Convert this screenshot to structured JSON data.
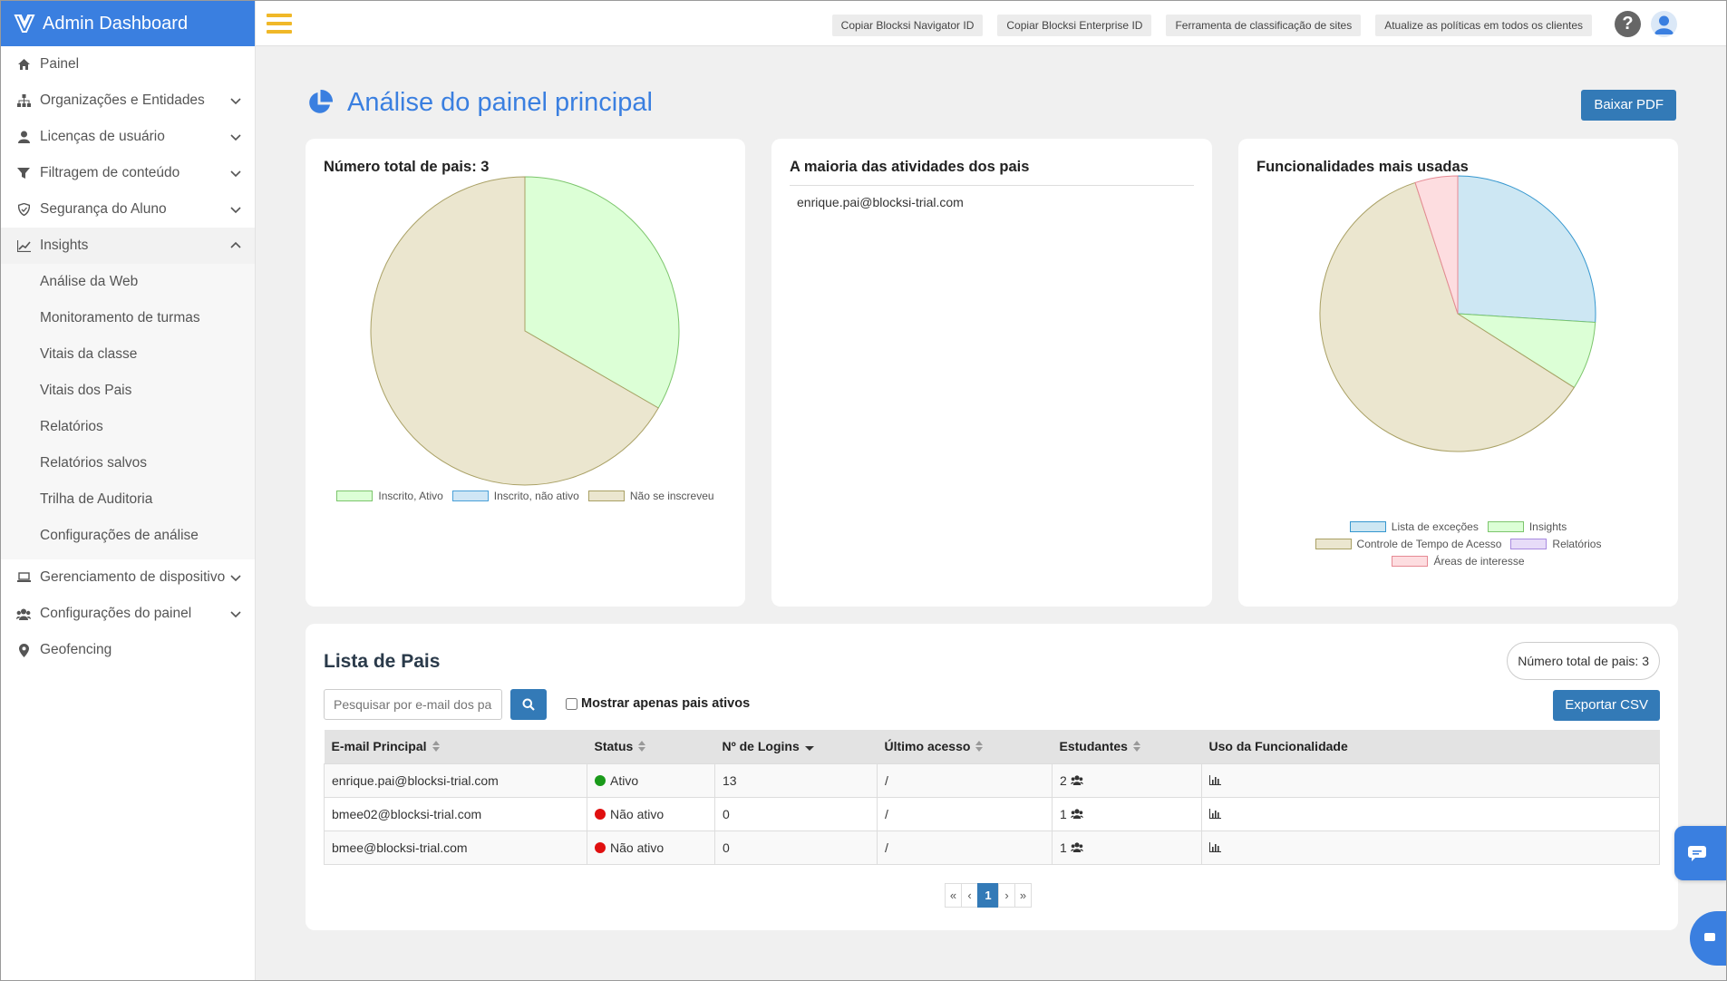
{
  "app": {
    "title": "Admin Dashboard"
  },
  "sidebar": {
    "items": [
      {
        "label": "Painel",
        "icon": "home-icon"
      },
      {
        "label": "Organizações e Entidades",
        "icon": "sitemap-icon",
        "expandable": true
      },
      {
        "label": "Licenças de usuário",
        "icon": "user-icon",
        "expandable": true
      },
      {
        "label": "Filtragem de conteúdo",
        "icon": "filter-icon",
        "expandable": true
      },
      {
        "label": "Segurança do Aluno",
        "icon": "shield-icon",
        "expandable": true
      },
      {
        "label": "Insights",
        "icon": "chart-icon",
        "expandable": true,
        "open": true
      },
      {
        "label": "Gerenciamento de dispositivo",
        "icon": "laptop-icon",
        "expandable": true
      },
      {
        "label": "Configurações do painel",
        "icon": "users-icon",
        "expandable": true
      },
      {
        "label": "Geofencing",
        "icon": "map-marker-icon"
      }
    ],
    "insights_sub": [
      "Análise da Web",
      "Monitoramento de turmas",
      "Vitais da classe",
      "Vitais dos Pais",
      "Relatórios",
      "Relatórios salvos",
      "Trilha de Auditoria",
      "Configurações de análise"
    ]
  },
  "topbar": {
    "buttons": [
      "Copiar Blocksi Navigator ID",
      "Copiar Blocksi Enterprise ID",
      "Ferramenta de classificação de sites",
      "Atualize as políticas em todos os clientes"
    ],
    "help": "?"
  },
  "page": {
    "title": "Análise do painel principal",
    "pdf_button": "Baixar PDF"
  },
  "cards": {
    "parents": {
      "title": "Número total de pais: 3"
    },
    "activities": {
      "title": "A maioria das atividades dos pais",
      "items": [
        "enrique.pai@blocksi-trial.com"
      ]
    },
    "features": {
      "title": "Funcionalidades mais usadas"
    }
  },
  "chart_data": [
    {
      "type": "pie",
      "title": "Número total de pais: 3",
      "categories": [
        "Inscrito, Ativo",
        "Inscrito, não ativo",
        "Não se inscreveu"
      ],
      "values": [
        1,
        0,
        2
      ],
      "colors": [
        {
          "fill": "#dcffd6",
          "stroke": "#7cc56c"
        },
        {
          "fill": "#cfe6f5",
          "stroke": "#4aa0d8"
        },
        {
          "fill": "#ebe6cf",
          "stroke": "#a9a064"
        }
      ],
      "legend": "bottom"
    },
    {
      "type": "pie",
      "title": "Funcionalidades mais usadas",
      "categories": [
        "Lista de exceções",
        "Insights",
        "Controle de Tempo de Acesso",
        "Relatórios",
        "Áreas de interesse"
      ],
      "values": [
        26,
        8,
        61,
        0,
        5
      ],
      "colors": [
        {
          "fill": "#cde7f3",
          "stroke": "#3597cf"
        },
        {
          "fill": "#dcffd6",
          "stroke": "#7cc56c"
        },
        {
          "fill": "#ebe6cf",
          "stroke": "#a9a064"
        },
        {
          "fill": "#e7dcf8",
          "stroke": "#a98be0"
        },
        {
          "fill": "#fddde0",
          "stroke": "#e68a94"
        }
      ],
      "legend": "bottom"
    }
  ],
  "parents_list": {
    "title": "Lista de Pais",
    "total": "Número total de pais: 3",
    "search_placeholder": "Pesquisar por e-mail dos pais",
    "active_only_label": "Mostrar apenas pais ativos",
    "export_button": "Exportar CSV",
    "columns": [
      "E-mail Principal",
      "Status",
      "Nº de Logins",
      "Último acesso",
      "Estudantes",
      "Uso da Funcionalidade"
    ],
    "rows": [
      {
        "email": "enrique.pai@blocksi-trial.com",
        "status": "Ativo",
        "status_color": "#1a9a1a",
        "logins": "13",
        "last_access": "/",
        "students": "2"
      },
      {
        "email": "bmee02@blocksi-trial.com",
        "status": "Não ativo",
        "status_color": "#e01010",
        "logins": "0",
        "last_access": "/",
        "students": "1"
      },
      {
        "email": "bmee@blocksi-trial.com",
        "status": "Não ativo",
        "status_color": "#e01010",
        "logins": "0",
        "last_access": "/",
        "students": "1"
      }
    ],
    "pagination": {
      "first": "«",
      "prev": "‹",
      "current": "1",
      "next": "›",
      "last": "»"
    }
  }
}
